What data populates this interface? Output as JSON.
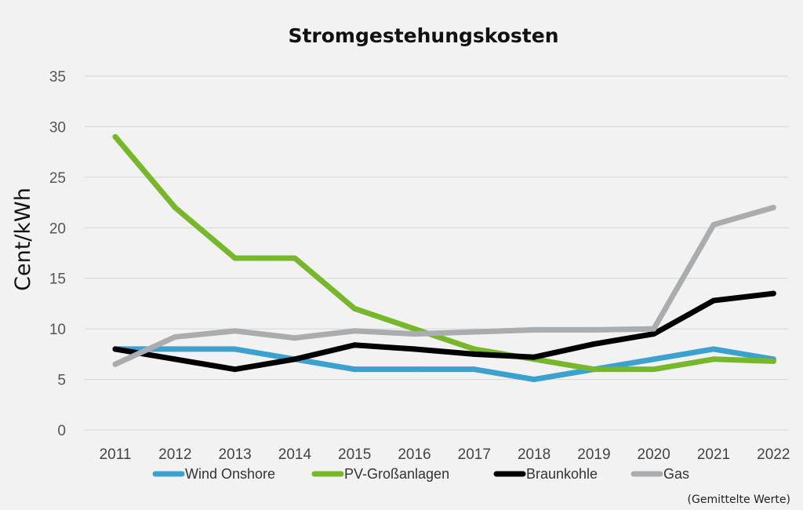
{
  "chart_data": {
    "type": "line",
    "title": "Stromgestehungskosten",
    "xlabel": "",
    "ylabel": "Cent/kWh",
    "ylim": [
      0,
      35
    ],
    "yticks": [
      0,
      5,
      10,
      15,
      20,
      25,
      30,
      35
    ],
    "grid": true,
    "categories": [
      "2011",
      "2012",
      "2013",
      "2014",
      "2015",
      "2016",
      "2017",
      "2018",
      "2019",
      "2020",
      "2021",
      "2022"
    ],
    "series": [
      {
        "name": "Wind Onshore",
        "color": "#3ba1cf",
        "values": [
          8,
          8,
          8,
          7,
          6,
          6,
          6,
          5,
          6,
          7,
          8,
          7
        ]
      },
      {
        "name": "PV-Großanlagen",
        "color": "#76b82a",
        "values": [
          29,
          22,
          17,
          17,
          12,
          10,
          8,
          7,
          6,
          6,
          7,
          6.8
        ]
      },
      {
        "name": "Braunkohle",
        "color": "#000000",
        "values": [
          8,
          7,
          6,
          7,
          8.4,
          8,
          7.5,
          7.2,
          8.5,
          9.5,
          12.8,
          13.5
        ]
      },
      {
        "name": "Gas",
        "color": "#a9adb0",
        "values": [
          6.5,
          9.2,
          9.8,
          9.1,
          9.8,
          9.5,
          9.7,
          9.9,
          9.9,
          10,
          20.3,
          22
        ]
      }
    ],
    "legend_position": "bottom",
    "note": "(Gemittelte Werte)"
  }
}
